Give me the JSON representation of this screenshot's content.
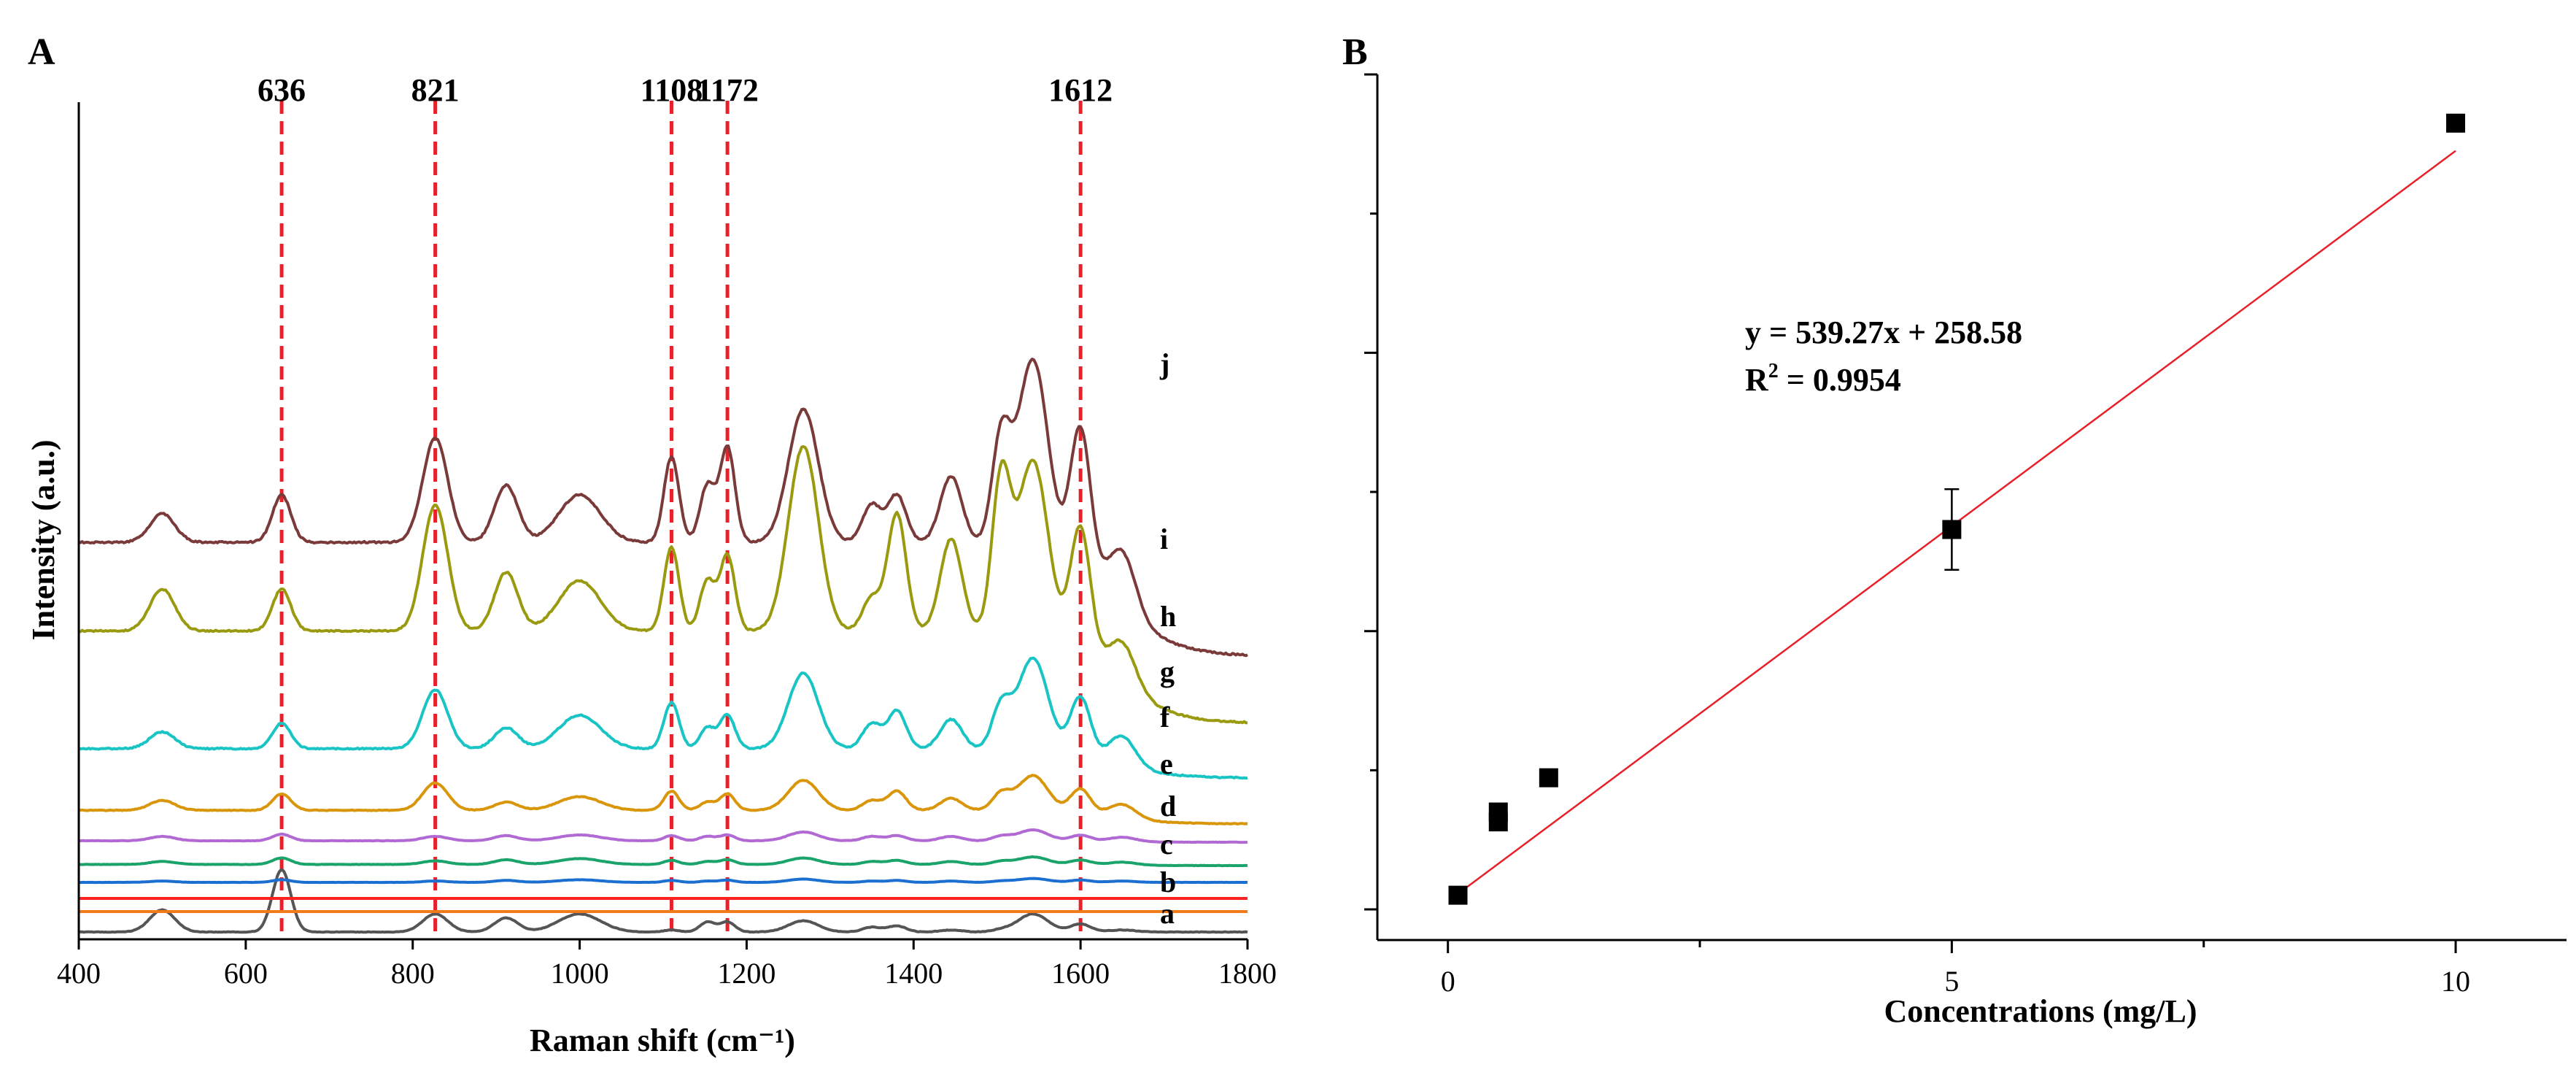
{
  "panel_a": {
    "letter": "A",
    "xlabel": "Raman shift (cm⁻¹)",
    "ylabel": "Intensity (a.u.)"
  },
  "panel_b": {
    "letter": "B",
    "xlabel": "Concentrations (mg/L)",
    "equation": "y = 539.27x + 258.58",
    "r2_prefix": "R",
    "r2_sup": "2",
    "r2_value": " = 0.9954"
  },
  "chart_data": [
    {
      "type": "line",
      "title": "",
      "xlabel": "Raman shift (cm⁻¹)",
      "ylabel": "Intensity (a.u.)",
      "xlim": [
        400,
        1800
      ],
      "xticks": [
        400,
        600,
        800,
        1000,
        1200,
        1400,
        1600,
        1800
      ],
      "yticks": [],
      "grid": false,
      "peak_markers": [
        {
          "label": "636",
          "x": 643
        },
        {
          "label": "821",
          "x": 827
        },
        {
          "label": "1108",
          "x": 1110
        },
        {
          "label": "1172",
          "x": 1177
        },
        {
          "label": "1612",
          "x": 1600
        }
      ],
      "peak_marker_color": "#e8202a",
      "peak_marker_style": "dashed",
      "series": [
        {
          "name": "a",
          "color": "#555555",
          "base": 2,
          "scale": 0.55,
          "noise": 0.2,
          "amps": [
            0.55,
            1.55,
            0.45,
            0.35,
            0.45,
            0.05,
            0.25,
            0.25,
            0.28,
            0.12,
            0.15,
            0.05,
            0.05,
            0.45,
            0.2,
            0.05
          ],
          "tail": 0
        },
        {
          "name": "b",
          "color": "#f07b18",
          "base": 30,
          "scale": 0.01,
          "noise": 0.2,
          "amps": [],
          "tail": 0
        },
        {
          "name": "c",
          "color": "#ff2020",
          "base": 48,
          "scale": 0.01,
          "noise": 0,
          "amps": [],
          "tail": 0
        },
        {
          "name": "d",
          "color": "#1b6fd0",
          "base": 70,
          "scale": 0.09,
          "noise": 0.45,
          "amps": [
            0.2,
            0.4,
            0.2,
            0.3,
            0.4,
            0.3,
            0.2,
            0.35,
            0.5,
            0.2,
            0.3,
            0.2,
            0.2,
            0.6,
            0.35,
            0.2
          ],
          "tail": 0
        },
        {
          "name": "e",
          "color": "#1aa36a",
          "base": 93,
          "scale": 0.16,
          "noise": 0.4,
          "amps": [
            0.25,
            0.55,
            0.3,
            0.4,
            0.5,
            0.35,
            0.25,
            0.4,
            0.55,
            0.25,
            0.35,
            0.25,
            0.25,
            0.65,
            0.4,
            0.25
          ],
          "tail": 0.1
        },
        {
          "name": "f",
          "color": "#b169d4",
          "base": 125,
          "scale": 0.2,
          "noise": 0.4,
          "amps": [
            0.3,
            0.45,
            0.3,
            0.35,
            0.4,
            0.35,
            0.3,
            0.4,
            0.6,
            0.3,
            0.35,
            0.3,
            0.3,
            0.75,
            0.4,
            0.3
          ],
          "tail": 0.1
        },
        {
          "name": "g",
          "color": "#d9960a",
          "base": 150,
          "scale": 0.75,
          "noise": 0.2,
          "amps": [
            0.18,
            0.3,
            0.5,
            0.15,
            0.25,
            0.35,
            0.15,
            0.3,
            0.55,
            0.18,
            0.35,
            0.22,
            0.3,
            0.65,
            0.45,
            0.25
          ],
          "tail": 0.25
        },
        {
          "name": "h",
          "color": "#19c4c4",
          "base": 213,
          "scale": 1.15,
          "noise": 0.25,
          "amps": [
            0.2,
            0.3,
            0.7,
            0.25,
            0.4,
            0.55,
            0.25,
            0.4,
            0.9,
            0.3,
            0.45,
            0.35,
            0.5,
            1.1,
            0.7,
            0.35
          ],
          "tail": 0.35
        },
        {
          "name": "i",
          "color": "#9a9a10",
          "base": 288,
          "scale": 2.3,
          "noise": 0.15,
          "amps": [
            0.25,
            0.25,
            0.75,
            0.35,
            0.3,
            0.5,
            0.3,
            0.45,
            1.1,
            0.2,
            0.7,
            0.55,
            0.9,
            1.05,
            0.75,
            0.25
          ],
          "tail": 0.55
        },
        {
          "name": "j",
          "color": "#7a3a3a",
          "base": 380,
          "scale": 2.6,
          "noise": 0.15,
          "amps": [
            0.15,
            0.25,
            0.55,
            0.3,
            0.25,
            0.45,
            0.3,
            0.5,
            0.7,
            0.2,
            0.25,
            0.35,
            0.55,
            1.0,
            0.75,
            0.3
          ],
          "tail": 0.6
        }
      ]
    },
    {
      "type": "scatter",
      "title": "",
      "xlabel": "Concentrations (mg/L)",
      "ylabel": "",
      "xlim": [
        -0.7,
        11.1
      ],
      "ylim": [
        -220,
        6000
      ],
      "xticks": [
        0,
        5,
        10
      ],
      "yticks": [],
      "grid": false,
      "points": [
        {
          "x": 0.1,
          "y": 102,
          "err": 20
        },
        {
          "x": 0.5,
          "y": 629,
          "err": 60
        },
        {
          "x": 0.5,
          "y": 700,
          "err": 50
        },
        {
          "x": 1.0,
          "y": 946,
          "err": 40
        },
        {
          "x": 5.0,
          "y": 2730,
          "err": 290
        },
        {
          "x": 10.0,
          "y": 5650,
          "err": 30
        }
      ],
      "fit": {
        "slope": 539.27,
        "intercept": 258.58,
        "r2": 0.9954,
        "x_range": [
          0.1,
          10
        ],
        "color": "#e8202a"
      }
    }
  ]
}
